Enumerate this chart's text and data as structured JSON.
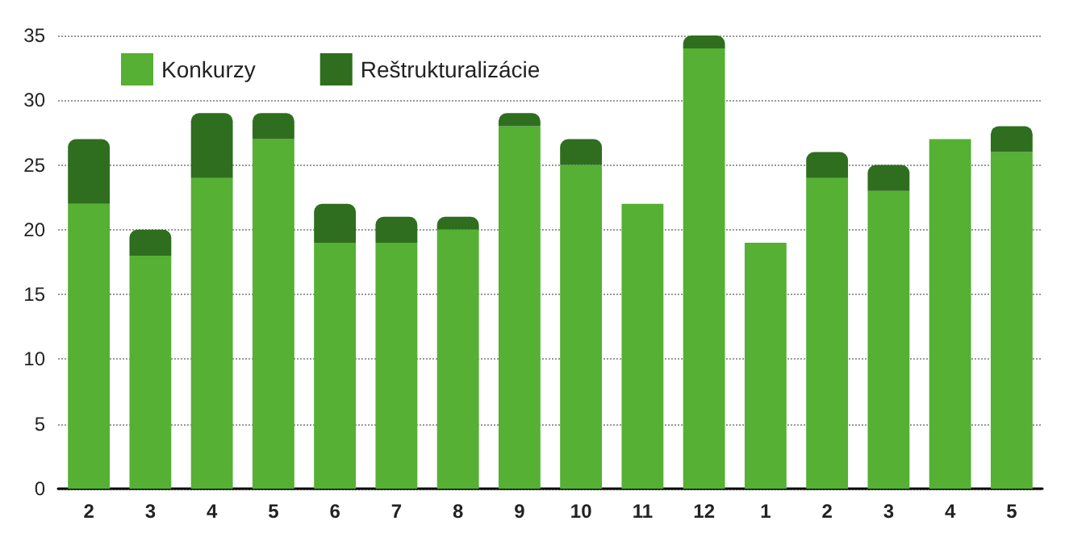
{
  "chart_data": {
    "type": "bar",
    "stacked": true,
    "categories": [
      "2",
      "3",
      "4",
      "5",
      "6",
      "7",
      "8",
      "9",
      "10",
      "11",
      "12",
      "1",
      "2",
      "3",
      "4",
      "5"
    ],
    "series": [
      {
        "name": "Konkurzy",
        "color": "#55b033",
        "values": [
          22,
          18,
          24,
          27,
          19,
          19,
          20,
          28,
          25,
          22,
          34,
          19,
          24,
          23,
          27,
          26
        ]
      },
      {
        "name": "Reštrukturalizácie",
        "color": "#2e6e1e",
        "values": [
          5,
          2,
          5,
          2,
          3,
          2,
          1,
          1,
          2,
          0,
          1,
          0,
          2,
          2,
          0,
          2
        ]
      }
    ],
    "ylim": [
      0,
      35
    ],
    "yticks": [
      0,
      5,
      10,
      15,
      20,
      25,
      30,
      35
    ],
    "grid": "y",
    "legend": "top left"
  }
}
